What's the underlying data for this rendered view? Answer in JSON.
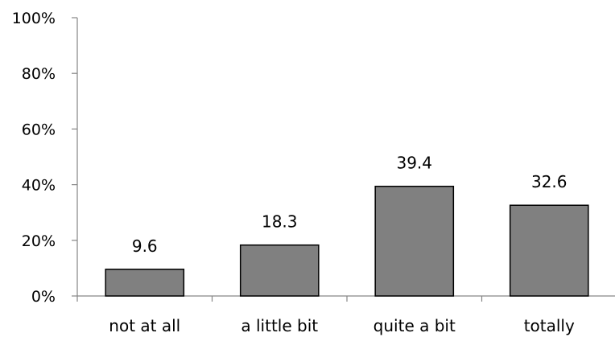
{
  "chart_data": {
    "type": "bar",
    "title": "",
    "xlabel": "",
    "ylabel": "",
    "categories": [
      "not at all",
      "a little bit",
      "quite a bit",
      "totally"
    ],
    "values": [
      9.6,
      18.3,
      39.4,
      32.6
    ],
    "data_labels": [
      "9.6",
      "18.3",
      "39.4",
      "32.6"
    ],
    "ylim": [
      0,
      100
    ],
    "yticks": [
      0,
      20,
      40,
      60,
      80,
      100
    ],
    "ytick_labels": [
      "0%",
      "20%",
      "40%",
      "60%",
      "80%",
      "100%"
    ],
    "grid": false,
    "legend": "none",
    "bar_color": "#808080",
    "bar_edge_color": "#000000",
    "axis_color": "#868686"
  }
}
